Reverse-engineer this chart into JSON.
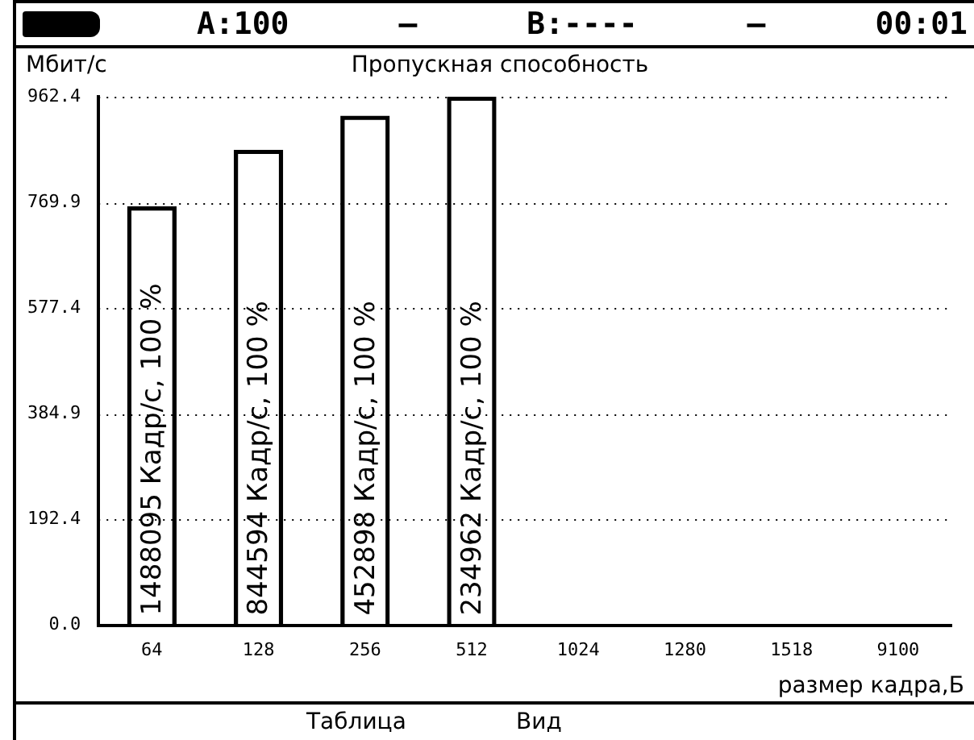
{
  "chart_data": {
    "type": "bar",
    "title": "Пропускная способность",
    "ylabel": "Мбит/с",
    "xlabel": "размер кадра,Б",
    "categories": [
      "64",
      "128",
      "256",
      "512",
      "1024",
      "1280",
      "1518",
      "9100"
    ],
    "values": [
      762,
      865,
      927,
      962,
      null,
      null,
      null,
      null
    ],
    "color": "#000000",
    "ylim": [
      0,
      962.4
    ],
    "yticks": [
      {
        "value": 0,
        "label": "0.0"
      },
      192.4,
      384.9,
      577.4,
      769.9,
      962.4
    ],
    "grid": "y",
    "annotations": [
      "A:100",
      "—",
      "B:----",
      "—",
      "00:01",
      "Таблица",
      "Вид",
      "1488095 Кадр/с, 100 %",
      "844594 Кадр/с, 100 %",
      "452898 Кадр/с, 100 %",
      "234962 Кадр/с, 100 %"
    ]
  }
}
